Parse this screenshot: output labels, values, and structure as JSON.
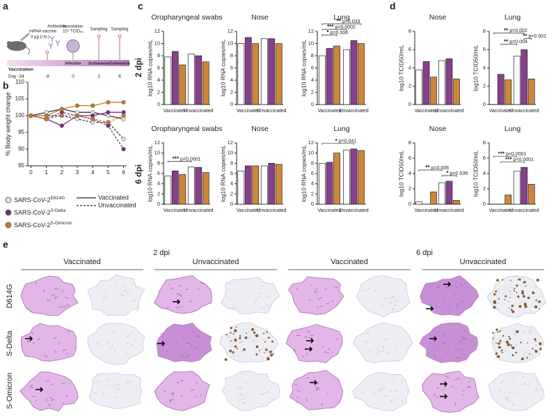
{
  "panels": [
    "a",
    "b",
    "c",
    "d",
    "e"
  ],
  "dpi_labels": [
    "2 dpi",
    "6 dpi"
  ],
  "panel_a": {
    "vaccine": "mRNA vaccine",
    "dose": "3 µg (i.m.)",
    "antibodies": "Antibodies",
    "inoculation": "Inoculation",
    "inoculum": "10⁴ TCID₅₀",
    "sampling": [
      "Sampling",
      "Sampling"
    ],
    "events": [
      "Vaccination",
      "Infection",
      "Euthanasia",
      "Euthanasia"
    ],
    "days": [
      "Day -34",
      "-8",
      "0",
      "2",
      "6"
    ]
  },
  "chart_data": [
    {
      "type": "line",
      "ylabel": "% Body weight change",
      "x": [
        0,
        1,
        2,
        3,
        4,
        5,
        6
      ],
      "xlim": [
        -0.2,
        6.2
      ],
      "xticks": [
        0,
        1,
        2,
        3,
        4,
        5,
        6
      ],
      "ylim": [
        85,
        110
      ],
      "yticks": [
        85,
        90,
        95,
        100,
        105,
        110
      ],
      "line_styles": [
        "Vaccinated",
        "Unvaccinated"
      ],
      "strains": [
        {
          "name": "SARS-CoV-2",
          "sup": "D614G",
          "color": "#e4e4e4",
          "line_color": "#333333",
          "vaccinated": [
            100,
            101,
            102,
            101,
            101,
            100,
            99
          ],
          "unvaccinated": [
            100,
            100,
            100,
            99,
            98,
            98,
            93
          ]
        },
        {
          "name": "SARS-CoV-2",
          "sup": "S-Delta",
          "color": "#7b2a80",
          "line_color": "#7b2a80",
          "vaccinated": [
            100,
            99,
            97,
            100,
            100,
            101,
            101
          ],
          "unvaccinated": [
            100,
            99,
            101,
            100,
            99,
            97,
            90
          ]
        },
        {
          "name": "SARS-CoV-2",
          "sup": "S-Omicron",
          "color": "#c97a24",
          "line_color": "#c97a24",
          "vaccinated": [
            100,
            100,
            102,
            103,
            103,
            104,
            104
          ],
          "unvaccinated": [
            100,
            99,
            100,
            100,
            99,
            98,
            100
          ]
        }
      ]
    },
    {
      "type": "bar",
      "title": "Oropharyngeal swabs",
      "ylabel": "log10 RNA copies/mL",
      "categories": [
        "Vaccinated",
        "Unvaccinated"
      ],
      "ylim": [
        0,
        12
      ],
      "yticks": [
        0,
        2,
        4,
        6,
        8,
        10,
        12
      ],
      "series": [
        {
          "color": "#ffffff",
          "values": [
            7.8,
            8.3
          ]
        },
        {
          "color": "#7b2a80",
          "values": [
            8.7,
            8.0
          ]
        },
        {
          "color": "#c97a24",
          "values": [
            6.5,
            7.0
          ]
        }
      ],
      "brackets": []
    },
    {
      "type": "bar",
      "title": "Nose",
      "ylabel": "log10 RNA copies/mL",
      "categories": [
        "Vaccinated",
        "Unvaccinated"
      ],
      "ylim": [
        0,
        12
      ],
      "yticks": [
        0,
        2,
        4,
        6,
        8,
        10,
        12
      ],
      "series": [
        {
          "color": "#ffffff",
          "values": [
            10,
            10.8
          ]
        },
        {
          "color": "#7b2a80",
          "values": [
            11,
            10.8
          ]
        },
        {
          "color": "#c97a24",
          "values": [
            10,
            10
          ]
        }
      ],
      "brackets": []
    },
    {
      "type": "bar",
      "title": "Lung",
      "ylabel": "log10 RNA copies/mL",
      "categories": [
        "Vaccinated",
        "Unvaccinated"
      ],
      "ylim": [
        0,
        12
      ],
      "yticks": [
        0,
        2,
        4,
        6,
        8,
        10,
        12
      ],
      "series": [
        {
          "color": "#ffffff",
          "values": [
            8,
            9
          ]
        },
        {
          "color": "#7b2a80",
          "values": [
            9.2,
            10.5
          ]
        },
        {
          "color": "#c97a24",
          "values": [
            9.6,
            10
          ]
        }
      ],
      "brackets": [
        {
          "bars": [
            0,
            2
          ],
          "stars": "*",
          "p": "p=0.006"
        },
        {
          "bars": [
            0,
            3
          ],
          "stars": "***",
          "p": "p=0.0002"
        },
        {
          "bars": [
            0,
            5
          ],
          "stars": "**",
          "p": "p=0.033"
        }
      ]
    },
    {
      "type": "bar",
      "title": "Oropharyngeal swabs",
      "ylabel": "log10 RNA copies/mL",
      "categories": [
        "Vaccinated",
        "Unvaccinated"
      ],
      "ylim": [
        0,
        12
      ],
      "yticks": [
        0,
        2,
        4,
        6,
        8,
        10,
        12
      ],
      "series": [
        {
          "color": "#ffffff",
          "values": [
            5.5,
            7.3
          ]
        },
        {
          "color": "#7b2a80",
          "values": [
            6.5,
            7.2
          ]
        },
        {
          "color": "#c97a24",
          "values": [
            5.8,
            6.2
          ]
        }
      ],
      "brackets": [
        {
          "bars": [
            0,
            3
          ],
          "stars": "***",
          "p": "p=0.0001"
        }
      ]
    },
    {
      "type": "bar",
      "title": "Nose",
      "ylabel": "log10 RNA copies/mL",
      "categories": [
        "Vaccinated",
        "Unvaccinated"
      ],
      "ylim": [
        0,
        12
      ],
      "yticks": [
        0,
        2,
        4,
        6,
        8,
        10,
        12
      ],
      "series": [
        {
          "color": "#ffffff",
          "values": [
            6.5,
            7.5
          ]
        },
        {
          "color": "#7b2a80",
          "values": [
            7.5,
            8
          ]
        },
        {
          "color": "#c97a24",
          "values": [
            7.5,
            7.8
          ]
        }
      ],
      "brackets": []
    },
    {
      "type": "bar",
      "title": "Lung",
      "ylabel": "log10 RNA copies/mL",
      "categories": [
        "Vaccinated",
        "Unvaccinated"
      ],
      "ylim": [
        0,
        12
      ],
      "yticks": [
        0,
        2,
        4,
        6,
        8,
        10,
        12
      ],
      "series": [
        {
          "color": "#ffffff",
          "values": [
            8,
            10.6
          ]
        },
        {
          "color": "#7b2a80",
          "values": [
            8.2,
            10.8
          ]
        },
        {
          "color": "#c97a24",
          "values": [
            10,
            10.5
          ]
        }
      ],
      "brackets": [
        {
          "bars": [
            0,
            4
          ],
          "stars": "*",
          "p": "p=0.041"
        }
      ]
    },
    {
      "type": "bar",
      "title": "Nose",
      "ylabel": "log10 TCID50/mL",
      "categories": [
        "Vaccinated",
        "Unvaccinated"
      ],
      "ylim": [
        0,
        8
      ],
      "yticks": [
        0,
        2,
        4,
        6,
        8
      ],
      "series": [
        {
          "color": "#ffffff",
          "values": [
            3.8,
            4.8
          ]
        },
        {
          "color": "#7b2a80",
          "values": [
            4.7,
            5.0
          ]
        },
        {
          "color": "#c97a24",
          "values": [
            3.0,
            2.8
          ]
        }
      ],
      "brackets": []
    },
    {
      "type": "bar",
      "title": "Lung",
      "ylabel": "log10 TCID50/mL",
      "categories": [
        "Vaccinated",
        "Unvaccinated"
      ],
      "ylim": [
        0,
        8
      ],
      "yticks": [
        0,
        2,
        4,
        6,
        8
      ],
      "series": [
        {
          "color": "#ffffff",
          "values": [
            0,
            5.3
          ]
        },
        {
          "color": "#7b2a80",
          "values": [
            3.3,
            6.0
          ]
        },
        {
          "color": "#c97a24",
          "values": [
            2.7,
            2.8
          ]
        }
      ],
      "brackets": [
        {
          "bars": [
            1,
            3
          ],
          "stars": "**",
          "p": "p=0.004"
        },
        {
          "bars": [
            4,
            5
          ],
          "stars": "**",
          "p": "p=0.001"
        },
        {
          "bars": [
            0,
            4
          ],
          "stars": "**",
          "p": "p=0.002"
        }
      ]
    },
    {
      "type": "bar",
      "title": "Nose",
      "ylabel": "log10 TCID50/mL",
      "categories": [
        "Vaccinated",
        "Unvaccinated"
      ],
      "ylim": [
        0,
        8
      ],
      "yticks": [
        0,
        2,
        4,
        6,
        8
      ],
      "series": [
        {
          "color": "#ffffff",
          "values": [
            0.3,
            2.8
          ]
        },
        {
          "color": "#7b2a80",
          "values": [
            0,
            3.0
          ]
        },
        {
          "color": "#c97a24",
          "values": [
            1.6,
            0.5
          ]
        }
      ],
      "brackets": [
        {
          "bars": [
            3,
            5
          ],
          "stars": "*",
          "p": "p=0.039"
        },
        {
          "bars": [
            0,
            3
          ],
          "stars": "**",
          "p": "p=0.006"
        }
      ]
    },
    {
      "type": "bar",
      "title": "Lung",
      "ylabel": "log10 TCID50/mL",
      "categories": [
        "Vaccinated",
        "Unvaccinated"
      ],
      "ylim": [
        0,
        8
      ],
      "yticks": [
        0,
        2,
        4,
        6,
        8
      ],
      "series": [
        {
          "color": "#ffffff",
          "values": [
            0,
            4.3
          ]
        },
        {
          "color": "#7b2a80",
          "values": [
            0,
            4.8
          ]
        },
        {
          "color": "#c97a24",
          "values": [
            1.2,
            2.6
          ]
        }
      ],
      "brackets": [
        {
          "bars": [
            1,
            4
          ],
          "stars": "***",
          "p": "p<0.0001"
        },
        {
          "bars": [
            0,
            3
          ],
          "stars": "***",
          "p": "p<0.0001"
        }
      ]
    }
  ],
  "panel_e": {
    "dpi_labels": [
      "2 dpi",
      "6 dpi"
    ],
    "groups": [
      "Vaccinated",
      "Unvaccinated",
      "Vaccinated",
      "Unvaccinated"
    ],
    "rows": [
      "D614G",
      "S-Delta",
      "S-Omicron"
    ]
  }
}
